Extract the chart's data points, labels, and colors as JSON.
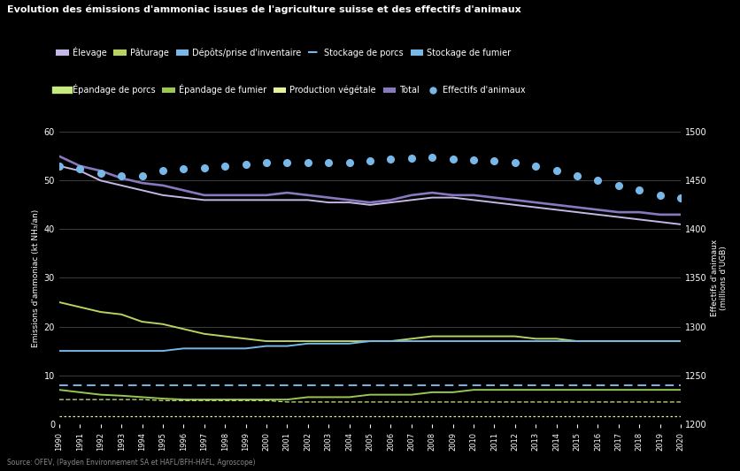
{
  "title": "Evolution des émissions d'ammoniac issues de l'agriculture suisse et des effectifs d'animaux",
  "source": "Source: OFEV, (Payden Environnement SA et HAFL/BFH-HAFL, Agroscope)",
  "years": [
    1990,
    1991,
    1992,
    1993,
    1994,
    1995,
    1996,
    1997,
    1998,
    1999,
    2000,
    2001,
    2002,
    2003,
    2004,
    2005,
    2006,
    2007,
    2008,
    2009,
    2010,
    2011,
    2012,
    2013,
    2014,
    2015,
    2016,
    2017,
    2018,
    2019,
    2020
  ],
  "ylabel_left": "Emissions d'ammoniac (kt NH₃/an)",
  "ylabel_right": "Effectifs d'animaux\n(millions d'UGB)",
  "ylim_left": [
    0,
    60
  ],
  "ylim_right": [
    1200,
    1500
  ],
  "yticks_left": [
    0,
    10,
    20,
    30,
    40,
    50,
    60
  ],
  "yticks_right": [
    1200,
    1250,
    1300,
    1350,
    1400,
    1450,
    1500
  ],
  "elevage": [
    53,
    52,
    50,
    49,
    48,
    47,
    46.5,
    46,
    46,
    46,
    46,
    46,
    46,
    45.5,
    45.5,
    45,
    45.5,
    46,
    46.5,
    46.5,
    46,
    45.5,
    45,
    44.5,
    44,
    43.5,
    43,
    42.5,
    42,
    41.5,
    41
  ],
  "total": [
    55,
    53,
    52,
    50.5,
    49.5,
    49,
    48,
    47,
    47,
    47,
    47,
    47.5,
    47,
    46.5,
    46,
    45.5,
    46,
    47,
    47.5,
    47,
    47,
    46.5,
    46,
    45.5,
    45,
    44.5,
    44,
    43.5,
    43.5,
    43,
    43
  ],
  "paturage": [
    25,
    24,
    23,
    22.5,
    21,
    20.5,
    19.5,
    18.5,
    18,
    17.5,
    17,
    17,
    17,
    17,
    17,
    17,
    17,
    17.5,
    18,
    18,
    18,
    18,
    18,
    17.5,
    17.5,
    17,
    17,
    17,
    17,
    17,
    17
  ],
  "stockage_fumier": [
    15,
    15,
    15,
    15,
    15,
    15,
    15.5,
    15.5,
    15.5,
    15.5,
    16,
    16,
    16.5,
    16.5,
    16.5,
    17,
    17,
    17,
    17,
    17,
    17,
    17,
    17,
    17,
    17,
    17,
    17,
    17,
    17,
    17,
    17
  ],
  "stockage_porcs_dashed": [
    8,
    8,
    8,
    8,
    8,
    8,
    8,
    8,
    8,
    8,
    8,
    8,
    8,
    8,
    8,
    8,
    8,
    8,
    8,
    8,
    8,
    8,
    8,
    8,
    8,
    8,
    8,
    8,
    8,
    8,
    8
  ],
  "epandage_fumier": [
    7,
    6.5,
    6,
    5.8,
    5.5,
    5.2,
    5,
    5,
    5,
    5,
    5,
    5,
    5.5,
    5.5,
    5.5,
    6,
    6,
    6,
    6.5,
    6.5,
    7,
    7,
    7,
    7,
    7,
    7,
    7,
    7,
    7,
    7,
    7
  ],
  "epandage_porcs_dashed": [
    5,
    5,
    5,
    5,
    5,
    4.8,
    4.8,
    4.8,
    4.8,
    4.8,
    4.8,
    4.5,
    4.5,
    4.5,
    4.5,
    4.5,
    4.5,
    4.5,
    4.5,
    4.5,
    4.5,
    4.5,
    4.5,
    4.5,
    4.5,
    4.5,
    4.5,
    4.5,
    4.5,
    4.5,
    4.5
  ],
  "production_vegetale": [
    1.5,
    1.5,
    1.5,
    1.5,
    1.5,
    1.5,
    1.5,
    1.5,
    1.5,
    1.5,
    1.5,
    1.5,
    1.5,
    1.5,
    1.5,
    1.5,
    1.5,
    1.5,
    1.5,
    1.5,
    1.5,
    1.5,
    1.5,
    1.5,
    1.5,
    1.5,
    1.5,
    1.5,
    1.5,
    1.5,
    1.5
  ],
  "effectifs": [
    1465,
    1462,
    1458,
    1455,
    1455,
    1460,
    1462,
    1463,
    1465,
    1467,
    1468,
    1468,
    1468,
    1468,
    1468,
    1470,
    1472,
    1473,
    1474,
    1472,
    1471,
    1470,
    1468,
    1465,
    1460,
    1455,
    1450,
    1445,
    1440,
    1435,
    1432
  ],
  "color_elevage": "#c5b8e8",
  "color_total": "#8878c0",
  "color_paturage": "#b8d460",
  "color_stockage_fumier": "#78b8e8",
  "color_stockage_porcs": "#78b8e8",
  "color_epandage_fumier": "#98c850",
  "color_epandage_porcs": "#c8e880",
  "color_production_vegetale": "#e8f098",
  "color_effectifs": "#78b8e8",
  "color_bg": "#000000",
  "color_grid": "#555555",
  "color_text": "#ffffff",
  "color_source": "#888888"
}
